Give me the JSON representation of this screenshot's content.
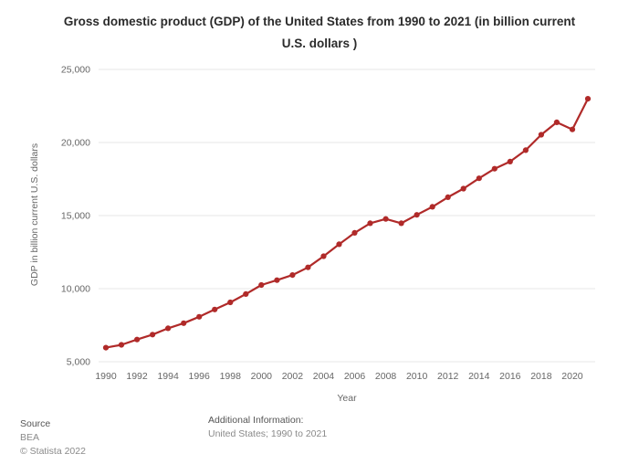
{
  "chart_data": {
    "type": "line",
    "title": "Gross domestic product (GDP) of the United States from 1990 to 2021 (in billion current U.S. dollars )",
    "xlabel": "Year",
    "ylabel": "GDP in billion current U.S. dollars",
    "x": [
      1990,
      1991,
      1992,
      1993,
      1994,
      1995,
      1996,
      1997,
      1998,
      1999,
      2000,
      2001,
      2002,
      2003,
      2004,
      2005,
      2006,
      2007,
      2008,
      2009,
      2010,
      2011,
      2012,
      2013,
      2014,
      2015,
      2016,
      2017,
      2018,
      2019,
      2020,
      2021
    ],
    "values": [
      5963,
      6158,
      6520,
      6859,
      7287,
      7640,
      8073,
      8578,
      9063,
      9631,
      10251,
      10582,
      10929,
      11457,
      12217,
      13039,
      13816,
      14474,
      14770,
      14478,
      15049,
      15600,
      16254,
      16843,
      17551,
      18206,
      18695,
      19477,
      20533,
      21381,
      20894,
      22996
    ],
    "ylim": [
      5000,
      25000
    ],
    "y_ticks": [
      {
        "v": 5000,
        "label": "5,000"
      },
      {
        "v": 10000,
        "label": "10,000"
      },
      {
        "v": 15000,
        "label": "15,000"
      },
      {
        "v": 20000,
        "label": "20,000"
      },
      {
        "v": 25000,
        "label": "25,000"
      }
    ],
    "x_tick_years": [
      1990,
      1992,
      1994,
      1996,
      1998,
      2000,
      2002,
      2004,
      2006,
      2008,
      2010,
      2012,
      2014,
      2016,
      2018,
      2020
    ],
    "grid": true,
    "legend": "none",
    "line_color": "#b02a29",
    "grid_color": "#e7e7e7",
    "tick_color": "#666666"
  },
  "footer": {
    "source_heading": "Source",
    "source_name": "BEA",
    "copyright": "© Statista 2022",
    "additional_heading": "Additional Information:",
    "additional_text": "United States; 1990 to 2021"
  }
}
